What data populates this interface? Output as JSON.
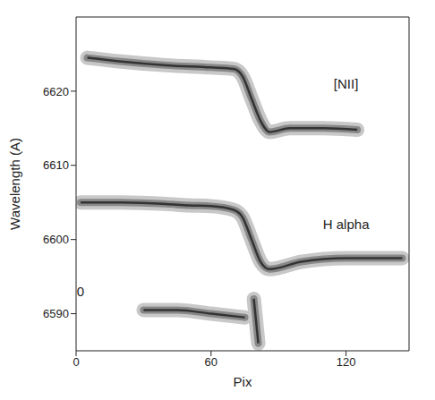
{
  "chart_data": {
    "type": "contour",
    "xlabel": "Pix",
    "ylabel": "Wavelength (A)",
    "xlim": [
      0,
      148
    ],
    "ylim": [
      6585,
      6630
    ],
    "xticks": [
      0,
      60,
      120
    ],
    "yticks": [
      6590,
      6600,
      6610,
      6620
    ],
    "grid": false,
    "color": "#333333",
    "series": [
      {
        "x": [
          5,
          20,
          40,
          60,
          70,
          74,
          78,
          82,
          86,
          95,
          110,
          125
        ],
        "y": [
          6624.5,
          6624,
          6623.5,
          6623.2,
          6623,
          6622,
          6619,
          6616,
          6614.5,
          6615,
          6615,
          6614.8
        ]
      },
      {
        "x": [
          2,
          20,
          40,
          50,
          60,
          70,
          74,
          78,
          82,
          86,
          100,
          120,
          145
        ],
        "y": [
          6605,
          6605,
          6604.8,
          6604.6,
          6604.5,
          6604,
          6603,
          6600,
          6597,
          6596,
          6597,
          6597.5,
          6597.5
        ]
      },
      {
        "x": [
          30,
          45,
          60,
          75
        ],
        "y": [
          6590.5,
          6590.5,
          6590,
          6589.5
        ]
      },
      {
        "x": [
          79,
          80,
          81
        ],
        "y": [
          6592,
          6589,
          6586
        ]
      }
    ],
    "annotations": [
      {
        "text": "[NII]",
        "x": 120,
        "y": 6621
      },
      {
        "text": "H alpha",
        "x": 120,
        "y": 6602
      },
      {
        "text": "0",
        "x": 2,
        "y": 6593
      }
    ]
  }
}
